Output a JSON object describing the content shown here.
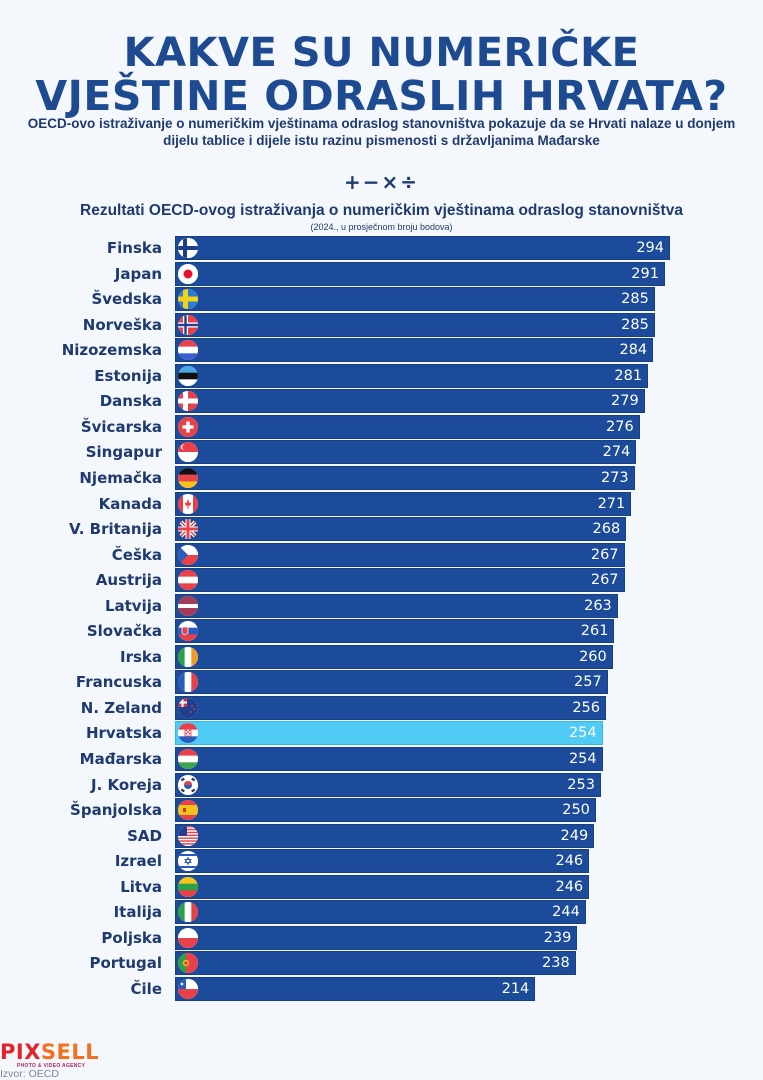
{
  "header": {
    "title_line1": "KAKVE SU NUMERIČKE",
    "title_line2": "VJEŠTINE ODRASLIH HRVATA?",
    "subtitle": "OECD-ovo istraživanje o numeričkim vještinama odraslog stanovništva pokazuje da se Hrvati nalaze u donjem dijelu tablice i dijele istu razinu pismenosti s državljanima Mađarske",
    "operators": "+−×÷"
  },
  "colors": {
    "bar": "#1b4b9a",
    "highlight": "#4fcbf5",
    "title": "#1d4a91",
    "text": "#1e3a6e"
  },
  "chart_data": {
    "type": "bar",
    "orientation": "horizontal",
    "title": "Rezultati OECD-ovog istraživanja o numeričkim vještinama odraslog stanovništva",
    "subtitle": "(2024., u prosječnom broju bodova)",
    "xlabel": "",
    "ylabel": "",
    "xlim": [
      0,
      294
    ],
    "grid": false,
    "highlight": "Hrvatska",
    "categories": [
      "Finska",
      "Japan",
      "Švedska",
      "Norveška",
      "Nizozemska",
      "Estonija",
      "Danska",
      "Švicarska",
      "Singapur",
      "Njemačka",
      "Kanada",
      "V. Britanija",
      "Češka",
      "Austrija",
      "Latvija",
      "Slovačka",
      "Irska",
      "Francuska",
      "N. Zeland",
      "Hrvatska",
      "Mađarska",
      "J. Koreja",
      "Španjolska",
      "SAD",
      "Izrael",
      "Litva",
      "Italija",
      "Poljska",
      "Portugal",
      "Čile"
    ],
    "flags": [
      "fi",
      "jp",
      "se",
      "no",
      "nl",
      "ee",
      "dk",
      "ch",
      "sg",
      "de",
      "ca",
      "gb",
      "cz",
      "at",
      "lv",
      "sk",
      "ie",
      "fr",
      "nz",
      "hr",
      "hu",
      "kr",
      "es",
      "us",
      "il",
      "lt",
      "it",
      "pl",
      "pt",
      "cl"
    ],
    "values": [
      294,
      291,
      285,
      285,
      284,
      281,
      279,
      276,
      274,
      273,
      271,
      268,
      267,
      267,
      263,
      261,
      260,
      257,
      256,
      254,
      254,
      253,
      250,
      249,
      246,
      246,
      244,
      239,
      238,
      214
    ]
  },
  "footer": {
    "logo_part1": "PIX",
    "logo_part2": "SELL",
    "tagline": "PHOTO & VIDEO AGENCY",
    "source": "Izvor: OECD"
  }
}
